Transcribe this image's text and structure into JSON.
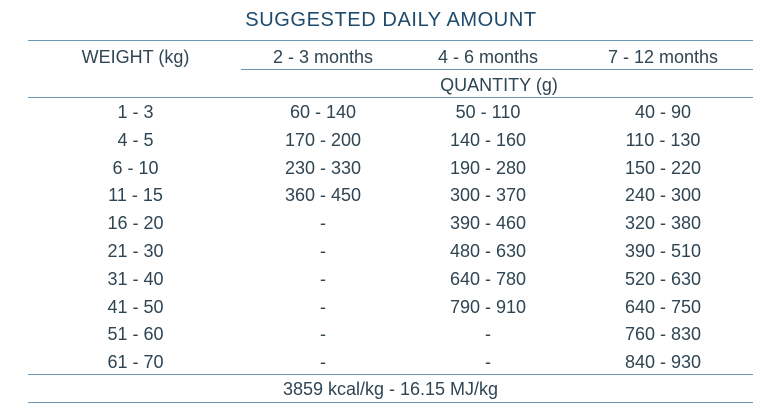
{
  "title": "SUGGESTED DAILY AMOUNT",
  "header": {
    "weight": "WEIGHT (kg)",
    "ages": [
      "2 - 3  months",
      "4 - 6  months",
      "7 - 12  months"
    ],
    "quantity": "QUANTITY (g)"
  },
  "rows": [
    [
      "1 - 3",
      "60 - 140",
      "50 - 110",
      "40 - 90"
    ],
    [
      "4 - 5",
      "170 - 200",
      "140 - 160",
      "110 - 130"
    ],
    [
      "6 - 10",
      "230 - 330",
      "190 - 280",
      "150 - 220"
    ],
    [
      "11 - 15",
      "360 - 450",
      "300 - 370",
      "240 - 300"
    ],
    [
      "16 - 20",
      "-",
      "390 - 460",
      "320 - 380"
    ],
    [
      "21 - 30",
      "-",
      "480 - 630",
      "390 - 510"
    ],
    [
      "31 - 40",
      "-",
      "640 - 780",
      "520 - 630"
    ],
    [
      "41 - 50",
      "-",
      "790 - 910",
      "640 - 750"
    ],
    [
      "51 - 60",
      "-",
      "-",
      "760 - 830"
    ],
    [
      "61 - 70",
      "-",
      "-",
      "840 - 930"
    ]
  ],
  "footer": "3859 kcal/kg - 16.15 MJ/kg"
}
